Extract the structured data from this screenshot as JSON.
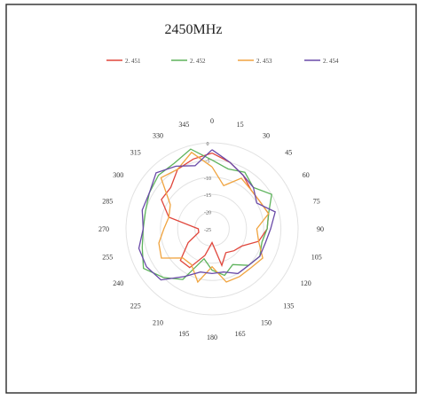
{
  "chart_data": {
    "type": "radar",
    "title": "2450MHz",
    "angle_ticks": [
      "0",
      "15",
      "30",
      "45",
      "60",
      "75",
      "90",
      "105",
      "120",
      "135",
      "150",
      "165",
      "180",
      "195",
      "210",
      "225",
      "240",
      "255",
      "270",
      "285",
      "300",
      "315",
      "330",
      "345"
    ],
    "radial_ticks": [
      "0",
      "-5",
      "-10",
      "-15",
      "-20",
      "-25"
    ],
    "radial_range": [
      -25,
      0
    ],
    "legend_position": "top",
    "series": [
      {
        "name": "2. 451",
        "color": "#e0463c",
        "values": [
          -3,
          -5,
          -7,
          -9,
          -9,
          -8,
          -9,
          -11,
          -15,
          -16,
          -17,
          -14,
          -21,
          -17,
          -12,
          -12,
          -17,
          -21,
          -21,
          -12,
          -8,
          -8,
          -5,
          -4
        ]
      },
      {
        "name": "2. 452",
        "color": "#5eb35c",
        "values": [
          -5,
          -7,
          -6,
          -8,
          -5,
          -8,
          -9,
          -10,
          -9,
          -10,
          -13,
          -11,
          -13,
          -16,
          -8,
          -5,
          -2,
          -4,
          -5,
          -5,
          -4,
          -3,
          -3,
          -1
        ]
      },
      {
        "name": "2. 453",
        "color": "#f0a440",
        "values": [
          -7,
          -12,
          -8,
          -9,
          -9,
          -8,
          -12,
          -11,
          -8,
          -9,
          -9,
          -9,
          -14,
          -9,
          -13,
          -13,
          -8,
          -9,
          -11,
          -12,
          -11,
          -4,
          -5,
          -2
        ]
      },
      {
        "name": "2. 454",
        "color": "#6a4aa8",
        "values": [
          -2,
          -5,
          -7,
          -8,
          -10,
          -6,
          -8,
          -9,
          -9,
          -10,
          -10,
          -12,
          -12,
          -12,
          -9,
          -4,
          -3,
          -3,
          -5,
          -4,
          -4,
          -2,
          -4,
          -6
        ]
      }
    ]
  }
}
